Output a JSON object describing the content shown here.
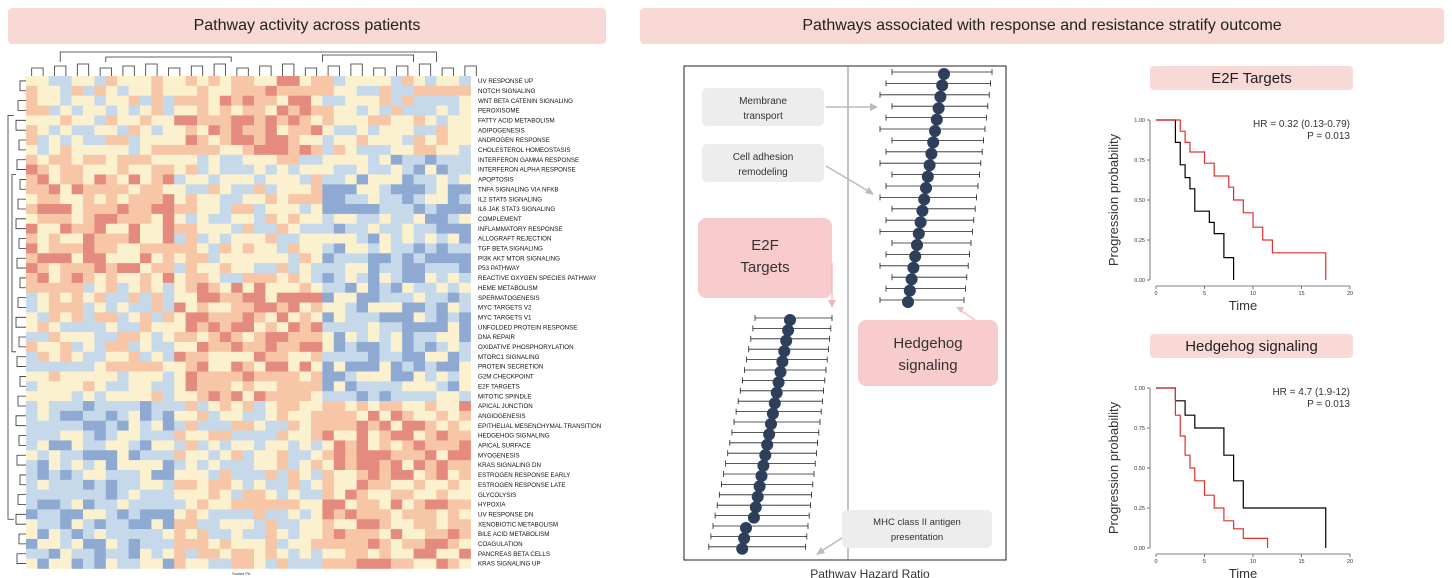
{
  "left_panel": {
    "title": "Pathway activity across patients",
    "scale_label": "Scaled PA",
    "rows": [
      "UV RESPONSE UP",
      "NOTCH SIGNALING",
      "WNT BETA CATENIN SIGNALING",
      "PEROXISOME",
      "FATTY ACID METABOLISM",
      "ADIPOGENESIS",
      "ANDROGEN RESPONSE",
      "CHOLESTEROL HOMEOSTASIS",
      "INTERFERON GAMMA RESPONSE",
      "INTERFERON ALPHA RESPONSE",
      "APOPTOSIS",
      "TNFA SIGNALING VIA NFKB",
      "IL2 STAT5 SIGNALING",
      "IL6 JAK STAT3 SIGNALING",
      "COMPLEMENT",
      "INFLAMMATORY RESPONSE",
      "ALLOGRAFT REJECTION",
      "TGF BETA SIGNALING",
      "PI3K AKT MTOR SIGNALING",
      "P53 PATHWAY",
      "REACTIVE OXYGEN SPECIES PATHWAY",
      "HEME METABOLISM",
      "SPERMATOGENESIS",
      "MYC TARGETS V2",
      "MYC TARGETS V1",
      "UNFOLDED PROTEIN RESPONSE",
      "DNA REPAIR",
      "OXIDATIVE PHOSPHORYLATION",
      "MTORC1 SIGNALING",
      "PROTEIN SECRETION",
      "G2M CHECKPOINT",
      "E2F TARGETS",
      "MITOTIC SPINDLE",
      "APICAL JUNCTION",
      "ANGIOGENESIS",
      "EPITHELIAL MESENCHYMAL TRANSITION",
      "HEDGEHOG SIGNALING",
      "APICAL SURFACE",
      "MYOGENESIS",
      "KRAS SIGNALING DN",
      "ESTROGEN RESPONSE EARLY",
      "ESTROGEN RESPONSE LATE",
      "GLYCOLYSIS",
      "HYPOXIA",
      "UV RESPONSE DN",
      "XENOBIOTIC METABOLISM",
      "BILE ACID METABOLISM",
      "COAGULATION",
      "PANCREAS BETA CELLS",
      "KRAS SIGNALING UP"
    ],
    "colors": {
      "high": "#e58a7e",
      "mid_high": "#f6c6a6",
      "neutral": "#fbf1cf",
      "mid_low": "#c6d9ea",
      "low": "#8ea9d2"
    }
  },
  "right_panel": {
    "title": "Pathways associated with response and resistance stratify outcome",
    "forest": {
      "xlabel": "Pathway Hazard Ratio",
      "callouts": {
        "membrane": "Membrane transport",
        "adhesion": "Cell adhesion remodeling",
        "e2f": "E2F Targets",
        "hedgehog": "Hedgehog signaling",
        "mhc": "MHC class II antigen presentation"
      },
      "point_color": "#2e3f5c"
    },
    "km1": {
      "title": "E2F Targets",
      "hr": "HR = 0.32 (0.13-0.79)",
      "p": "P = 0.013",
      "ylabel": "Progression probability",
      "xlabel": "Time",
      "yticks": [
        "1.00",
        "0.75",
        "0.50",
        "0.25",
        "0.00"
      ],
      "xticks": [
        "0",
        "5",
        "10",
        "15",
        "20"
      ]
    },
    "km2": {
      "title": "Hedgehog signaling",
      "hr": "HR = 4.7 (1.9-12)",
      "p": "P = 0.013",
      "ylabel": "Progression probability",
      "xlabel": "Time",
      "yticks": [
        "1.00",
        "0.75",
        "0.50",
        "0.25",
        "0.00"
      ],
      "xticks": [
        "0",
        "5",
        "10",
        "15",
        "20"
      ]
    }
  },
  "chart_data": [
    {
      "type": "line",
      "title": "E2F Targets",
      "xlabel": "Time",
      "ylabel": "Progression probability",
      "xlim": [
        0,
        20
      ],
      "ylim": [
        0,
        1
      ],
      "series": [
        {
          "color": "#000000",
          "x": [
            0,
            1.5,
            2,
            2.5,
            3,
            3.5,
            4,
            5,
            5.5,
            6,
            7,
            8
          ],
          "y": [
            1,
            1,
            0.86,
            0.72,
            0.64,
            0.57,
            0.43,
            0.43,
            0.36,
            0.29,
            0.14,
            0
          ]
        },
        {
          "color": "#e03030",
          "x": [
            0,
            2,
            2.5,
            3,
            3.5,
            5,
            6,
            7,
            7.5,
            8,
            9,
            10,
            11,
            12,
            17.5
          ],
          "y": [
            1,
            1,
            0.93,
            0.86,
            0.8,
            0.73,
            0.65,
            0.65,
            0.58,
            0.5,
            0.42,
            0.33,
            0.25,
            0.17,
            0
          ]
        }
      ]
    },
    {
      "type": "line",
      "title": "Hedgehog signaling",
      "xlabel": "Time",
      "ylabel": "Progression probability",
      "xlim": [
        0,
        20
      ],
      "ylim": [
        0,
        1
      ],
      "series": [
        {
          "color": "#000000",
          "x": [
            0,
            1.5,
            2,
            3,
            4,
            5,
            6,
            7,
            8,
            9,
            17.5
          ],
          "y": [
            1,
            1,
            0.92,
            0.83,
            0.75,
            0.75,
            0.75,
            0.58,
            0.42,
            0.25,
            0
          ]
        },
        {
          "color": "#e03030",
          "x": [
            0,
            1.5,
            2,
            2.5,
            3,
            3.5,
            4,
            5,
            6,
            7,
            8,
            9,
            11.5
          ],
          "y": [
            1,
            1,
            0.83,
            0.7,
            0.58,
            0.5,
            0.42,
            0.33,
            0.25,
            0.17,
            0.12,
            0.06,
            0
          ]
        }
      ]
    }
  ]
}
